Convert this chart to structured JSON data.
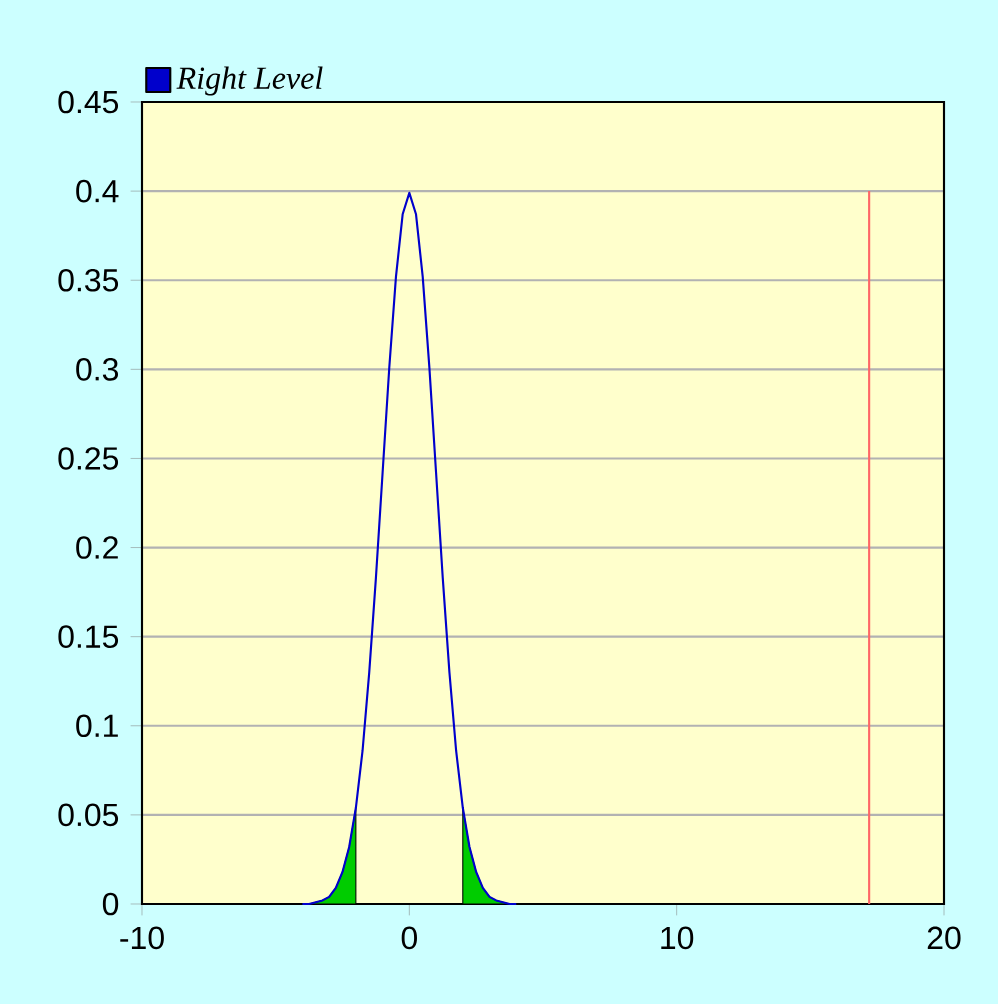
{
  "chart_data": {
    "type": "line",
    "xlim": [
      -10,
      20
    ],
    "ylim": [
      0,
      0.45
    ],
    "xticks": [
      -10,
      0,
      10,
      20
    ],
    "yticks": [
      0,
      0.05,
      0.1,
      0.15,
      0.2,
      0.25,
      0.3,
      0.35,
      0.4,
      0.45
    ],
    "grid": "y",
    "legend": "top left",
    "series": [
      {
        "type": "area",
        "color": "#00cc00",
        "x": [
          -4,
          -3.75,
          -3.5,
          -3.25,
          -3,
          -2.75,
          -2.5,
          -2.25,
          -2
        ],
        "values": [
          0,
          0,
          0.001,
          0.002,
          0.004,
          0.009,
          0.018,
          0.032,
          0.054
        ]
      },
      {
        "type": "area",
        "color": "#00cc00",
        "x": [
          2,
          2.25,
          2.5,
          2.75,
          3,
          3.25,
          3.5,
          3.75,
          4
        ],
        "values": [
          0.054,
          0.032,
          0.018,
          0.009,
          0.004,
          0.002,
          0.001,
          0,
          0
        ]
      },
      {
        "type": "line",
        "name": "Right Level",
        "color": "#0000cc",
        "x": [
          -4,
          -3.75,
          -3.5,
          -3.25,
          -3,
          -2.75,
          -2.5,
          -2.25,
          -2,
          -1.75,
          -1.5,
          -1.25,
          -1,
          -0.75,
          -0.5,
          -0.25,
          0,
          0.25,
          0.5,
          0.75,
          1,
          1.25,
          1.5,
          1.75,
          2,
          2.25,
          2.5,
          2.75,
          3,
          3.25,
          3.5,
          3.75,
          4
        ],
        "values": [
          0,
          0,
          0.001,
          0.002,
          0.004,
          0.009,
          0.018,
          0.032,
          0.054,
          0.086,
          0.13,
          0.183,
          0.242,
          0.301,
          0.352,
          0.387,
          0.399,
          0.387,
          0.352,
          0.301,
          0.242,
          0.183,
          0.13,
          0.086,
          0.054,
          0.032,
          0.018,
          0.009,
          0.004,
          0.002,
          0.001,
          0,
          0
        ]
      },
      {
        "type": "line",
        "color": "#ff6666",
        "x": [
          17.2,
          17.2
        ],
        "values": [
          0,
          0.4
        ]
      }
    ]
  }
}
